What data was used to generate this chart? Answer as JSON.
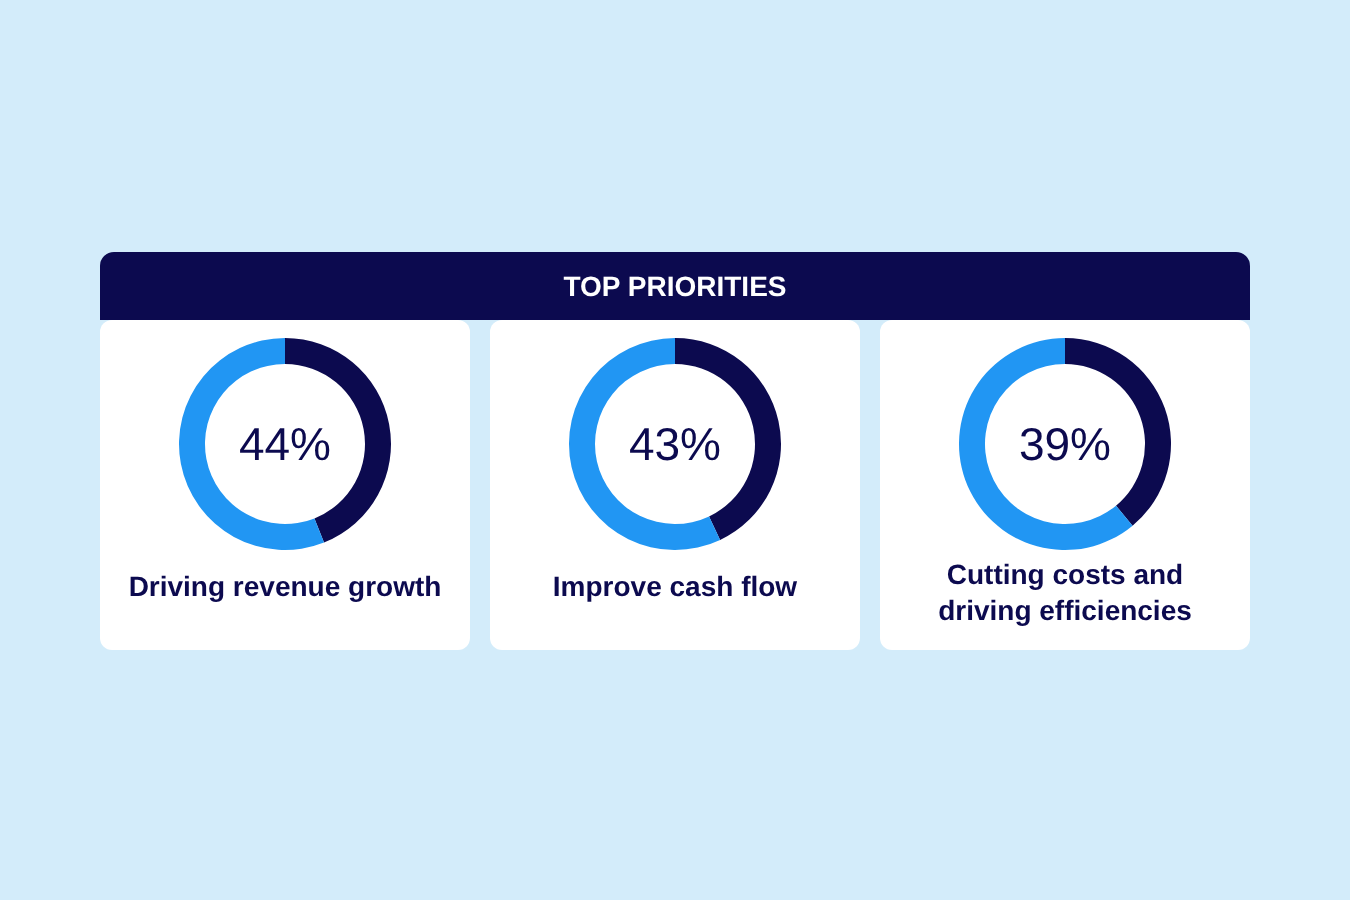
{
  "chart_data": [
    {
      "type": "other",
      "title": "TOP PRIORITIES"
    },
    {
      "type": "donut",
      "categories": [
        null,
        null
      ],
      "values": [
        44,
        56
      ],
      "colors": [
        "#0c0a4f",
        "#2196f3"
      ],
      "annotations": [
        "44%"
      ],
      "xlabel": "Driving revenue growth"
    },
    {
      "type": "donut",
      "categories": [
        null,
        null
      ],
      "values": [
        43,
        57
      ],
      "colors": [
        "#0c0a4f",
        "#2196f3"
      ],
      "annotations": [
        "43%"
      ],
      "xlabel": "Improve cash flow"
    },
    {
      "type": "donut",
      "categories": [
        null,
        null
      ],
      "values": [
        39,
        61
      ],
      "colors": [
        "#0c0a4f",
        "#2196f3"
      ],
      "annotations": [
        "39%"
      ],
      "xlabel": "Cutting costs and driving efficiencies"
    }
  ]
}
